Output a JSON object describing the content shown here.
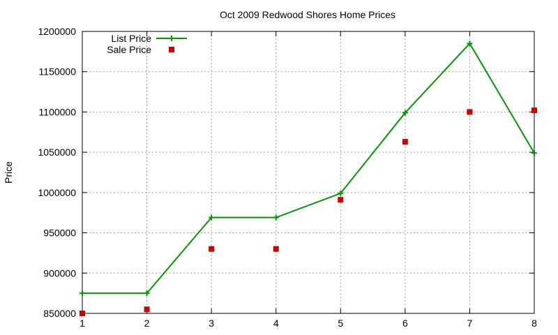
{
  "chart_data": {
    "type": "line",
    "title": "Oct 2009 Redwood Shores Home Prices",
    "xlabel": "",
    "ylabel": "Price",
    "x": [
      1,
      2,
      3,
      4,
      5,
      6,
      7,
      8
    ],
    "xlim": [
      1,
      8
    ],
    "ylim": [
      850000,
      1200000
    ],
    "xticks": [
      "1",
      "2",
      "3",
      "4",
      "5",
      "6",
      "7",
      "8"
    ],
    "yticks": [
      "850000",
      "900000",
      "950000",
      "1000000",
      "1050000",
      "1100000",
      "1150000",
      "1200000"
    ],
    "grid": true,
    "legend_position": "top-left",
    "series": [
      {
        "name": "List Price",
        "style": "lines+points",
        "marker": "plus",
        "color": "#009900",
        "values": [
          875000,
          875000,
          969000,
          969000,
          999000,
          1099000,
          1185000,
          1049000
        ]
      },
      {
        "name": "Sale Price",
        "style": "points",
        "marker": "square",
        "color": "#cc0000",
        "values": [
          850000,
          855000,
          930000,
          930000,
          991000,
          1063000,
          1100000,
          1102000
        ]
      }
    ]
  }
}
